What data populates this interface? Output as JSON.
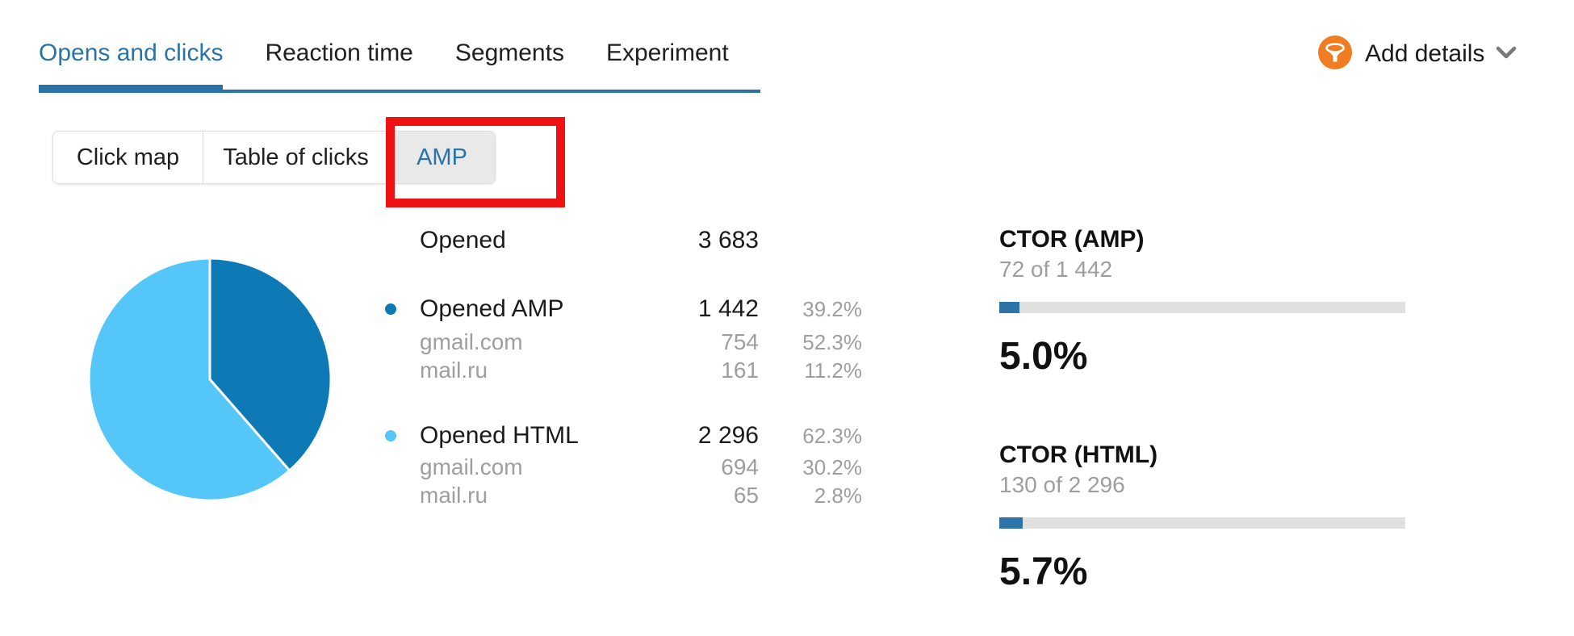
{
  "tabs": {
    "items": [
      {
        "label": "Opens and clicks",
        "active": true
      },
      {
        "label": "Reaction time",
        "active": false
      },
      {
        "label": "Segments",
        "active": false
      },
      {
        "label": "Experiment",
        "active": false
      }
    ]
  },
  "add_details": {
    "label": "Add details",
    "icon": "funnel-icon",
    "chevron": "chevron-down-icon"
  },
  "subtabs": {
    "items": [
      {
        "label": "Click map",
        "selected": false
      },
      {
        "label": "Table of clicks",
        "selected": false
      },
      {
        "label": "AMP",
        "selected": true,
        "highlighted_with_red_box": true
      }
    ]
  },
  "chart_data": {
    "type": "pie",
    "labels": [
      "Opened AMP",
      "Opened HTML"
    ],
    "values": [
      1442,
      2296
    ],
    "shown_percentages": [
      "39.2%",
      "62.3%"
    ],
    "colors": [
      "#0d79b5",
      "#54c7f8"
    ],
    "total_label": "Opened",
    "total_value": 3683,
    "legend_position": "right-table-bullets",
    "start_angle_deg": 0,
    "direction": "clockwise"
  },
  "stats": {
    "total": {
      "label": "Opened",
      "value": "3 683"
    },
    "groups": [
      {
        "label": "Opened AMP",
        "value": "1 442",
        "pct": "39.2%",
        "dot_color": "#0d79b5",
        "rows": [
          {
            "label": "gmail.com",
            "value": "754",
            "pct": "52.3%"
          },
          {
            "label": "mail.ru",
            "value": "161",
            "pct": "11.2%"
          }
        ]
      },
      {
        "label": "Opened HTML",
        "value": "2 296",
        "pct": "62.3%",
        "dot_color": "#54c7f8",
        "rows": [
          {
            "label": "gmail.com",
            "value": "694",
            "pct": "30.2%"
          },
          {
            "label": "mail.ru",
            "value": "65",
            "pct": "2.8%"
          }
        ]
      }
    ]
  },
  "ctor": [
    {
      "title": "CTOR (AMP)",
      "subtitle": "72 of 1 442",
      "percent": "5.0%",
      "fraction": 0.05
    },
    {
      "title": "CTOR (HTML)",
      "subtitle": "130 of 2 296",
      "percent": "5.7%",
      "fraction": 0.057
    }
  ],
  "colors": {
    "accent_blue": "#2a73a8",
    "pie_dark_blue": "#0d79b5",
    "pie_light_blue": "#54c7f8",
    "progress_fill": "#2e74a8",
    "progress_track": "#e0e0e0",
    "highlight_red": "#ee1212",
    "icon_orange": "#f07d21",
    "gray_text": "#9e9e9e",
    "selected_button_bg": "#e9e9e9"
  }
}
